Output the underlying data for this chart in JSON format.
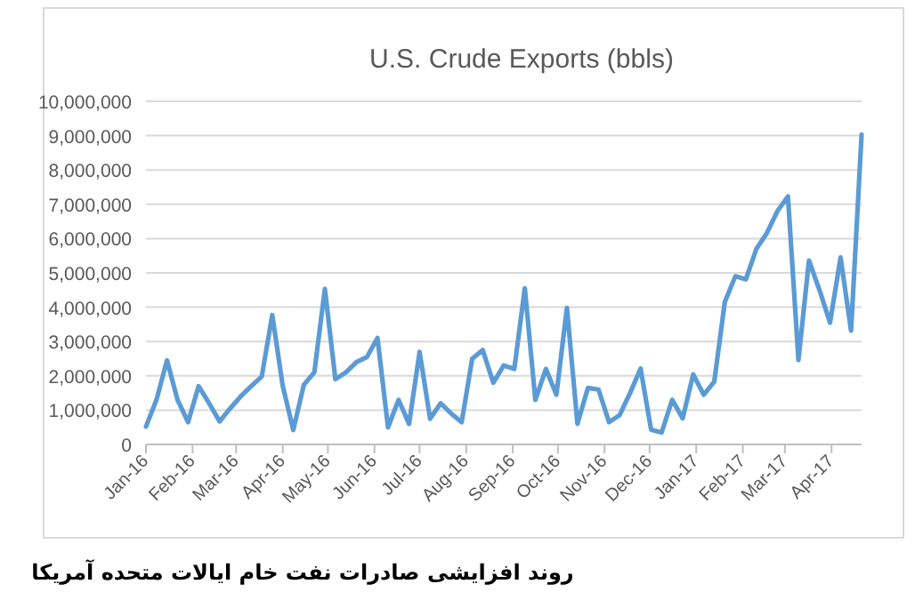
{
  "chart_data": {
    "type": "line",
    "title": "U.S. Crude Exports (bbls)",
    "x": [
      "2016-01-01",
      "2016-01-08",
      "2016-01-15",
      "2016-01-22",
      "2016-01-29",
      "2016-02-05",
      "2016-02-12",
      "2016-02-19",
      "2016-02-26",
      "2016-03-04",
      "2016-03-11",
      "2016-03-18",
      "2016-03-25",
      "2016-04-01",
      "2016-04-08",
      "2016-04-15",
      "2016-04-22",
      "2016-04-29",
      "2016-05-06",
      "2016-05-13",
      "2016-05-20",
      "2016-05-27",
      "2016-06-03",
      "2016-06-10",
      "2016-06-17",
      "2016-06-24",
      "2016-07-01",
      "2016-07-08",
      "2016-07-15",
      "2016-07-22",
      "2016-07-29",
      "2016-08-05",
      "2016-08-12",
      "2016-08-19",
      "2016-08-26",
      "2016-09-02",
      "2016-09-09",
      "2016-09-16",
      "2016-09-23",
      "2016-09-30",
      "2016-10-07",
      "2016-10-14",
      "2016-10-21",
      "2016-10-28",
      "2016-11-04",
      "2016-11-11",
      "2016-11-18",
      "2016-11-25",
      "2016-12-02",
      "2016-12-09",
      "2016-12-16",
      "2016-12-23",
      "2016-12-30",
      "2017-01-06",
      "2017-01-13",
      "2017-01-20",
      "2017-01-27",
      "2017-02-03",
      "2017-02-10",
      "2017-02-17",
      "2017-02-24",
      "2017-03-03",
      "2017-03-10",
      "2017-03-17",
      "2017-03-24",
      "2017-03-31",
      "2017-04-07",
      "2017-04-14",
      "2017-04-21"
    ],
    "series": [
      {
        "color": "#5b9bd5",
        "values": [
          520000,
          1300000,
          2450000,
          1300000,
          650000,
          1700000,
          1200000,
          670000,
          1050000,
          1400000,
          1700000,
          1980000,
          3770000,
          1700000,
          420000,
          1740000,
          2100000,
          4530000,
          1900000,
          2100000,
          2400000,
          2550000,
          3100000,
          500000,
          1300000,
          600000,
          2700000,
          750000,
          1200000,
          900000,
          650000,
          2500000,
          2750000,
          1800000,
          2300000,
          2200000,
          4550000,
          1300000,
          2200000,
          1450000,
          3980000,
          600000,
          1650000,
          1600000,
          650000,
          850000,
          1500000,
          2210000,
          430000,
          350000,
          1300000,
          760000,
          2040000,
          1450000,
          1830000,
          4150000,
          4900000,
          4810000,
          5700000,
          6160000,
          6800000,
          7230000,
          2460000,
          5360000,
          4500000,
          3550000,
          5450000,
          3320000,
          9030000
        ]
      }
    ],
    "xlim": [
      "2016-01-01",
      "2017-04-21"
    ],
    "xticks": [
      {
        "value": "2016-01-01",
        "label": "Jan-16"
      },
      {
        "value": "2016-02-01",
        "label": "Feb-16"
      },
      {
        "value": "2016-03-01",
        "label": "Mar-16"
      },
      {
        "value": "2016-04-01",
        "label": "Apr-16"
      },
      {
        "value": "2016-05-01",
        "label": "May-16"
      },
      {
        "value": "2016-06-01",
        "label": "Jun-16"
      },
      {
        "value": "2016-07-01",
        "label": "Jul-16"
      },
      {
        "value": "2016-08-01",
        "label": "Aug-16"
      },
      {
        "value": "2016-09-01",
        "label": "Sep-16"
      },
      {
        "value": "2016-10-01",
        "label": "Oct-16"
      },
      {
        "value": "2016-11-01",
        "label": "Nov-16"
      },
      {
        "value": "2016-12-01",
        "label": "Dec-16"
      },
      {
        "value": "2017-01-01",
        "label": "Jan-17"
      },
      {
        "value": "2017-02-01",
        "label": "Feb-17"
      },
      {
        "value": "2017-03-01",
        "label": "Mar-17"
      },
      {
        "value": "2017-04-01",
        "label": "Apr-17"
      }
    ],
    "ylim": [
      0,
      10000000
    ],
    "yticks": [
      0,
      {
        "value": 1000000,
        "label": "1,000,000"
      },
      {
        "value": 2000000,
        "label": "2,000,000"
      },
      {
        "value": 3000000,
        "label": "3,000,000"
      },
      {
        "value": 4000000,
        "label": "4,000,000"
      },
      {
        "value": 5000000,
        "label": "5,000,000"
      },
      {
        "value": 6000000,
        "label": "6,000,000"
      },
      {
        "value": 7000000,
        "label": "7,000,000"
      },
      {
        "value": 8000000,
        "label": "8,000,000"
      },
      {
        "value": 9000000,
        "label": "9,000,000"
      },
      {
        "value": 10000000,
        "label": "10,000,000"
      }
    ],
    "grid": "y",
    "annotations": [
      "روند افزایشی صادرات نفت خام ایالات متحده آمریکا"
    ]
  }
}
